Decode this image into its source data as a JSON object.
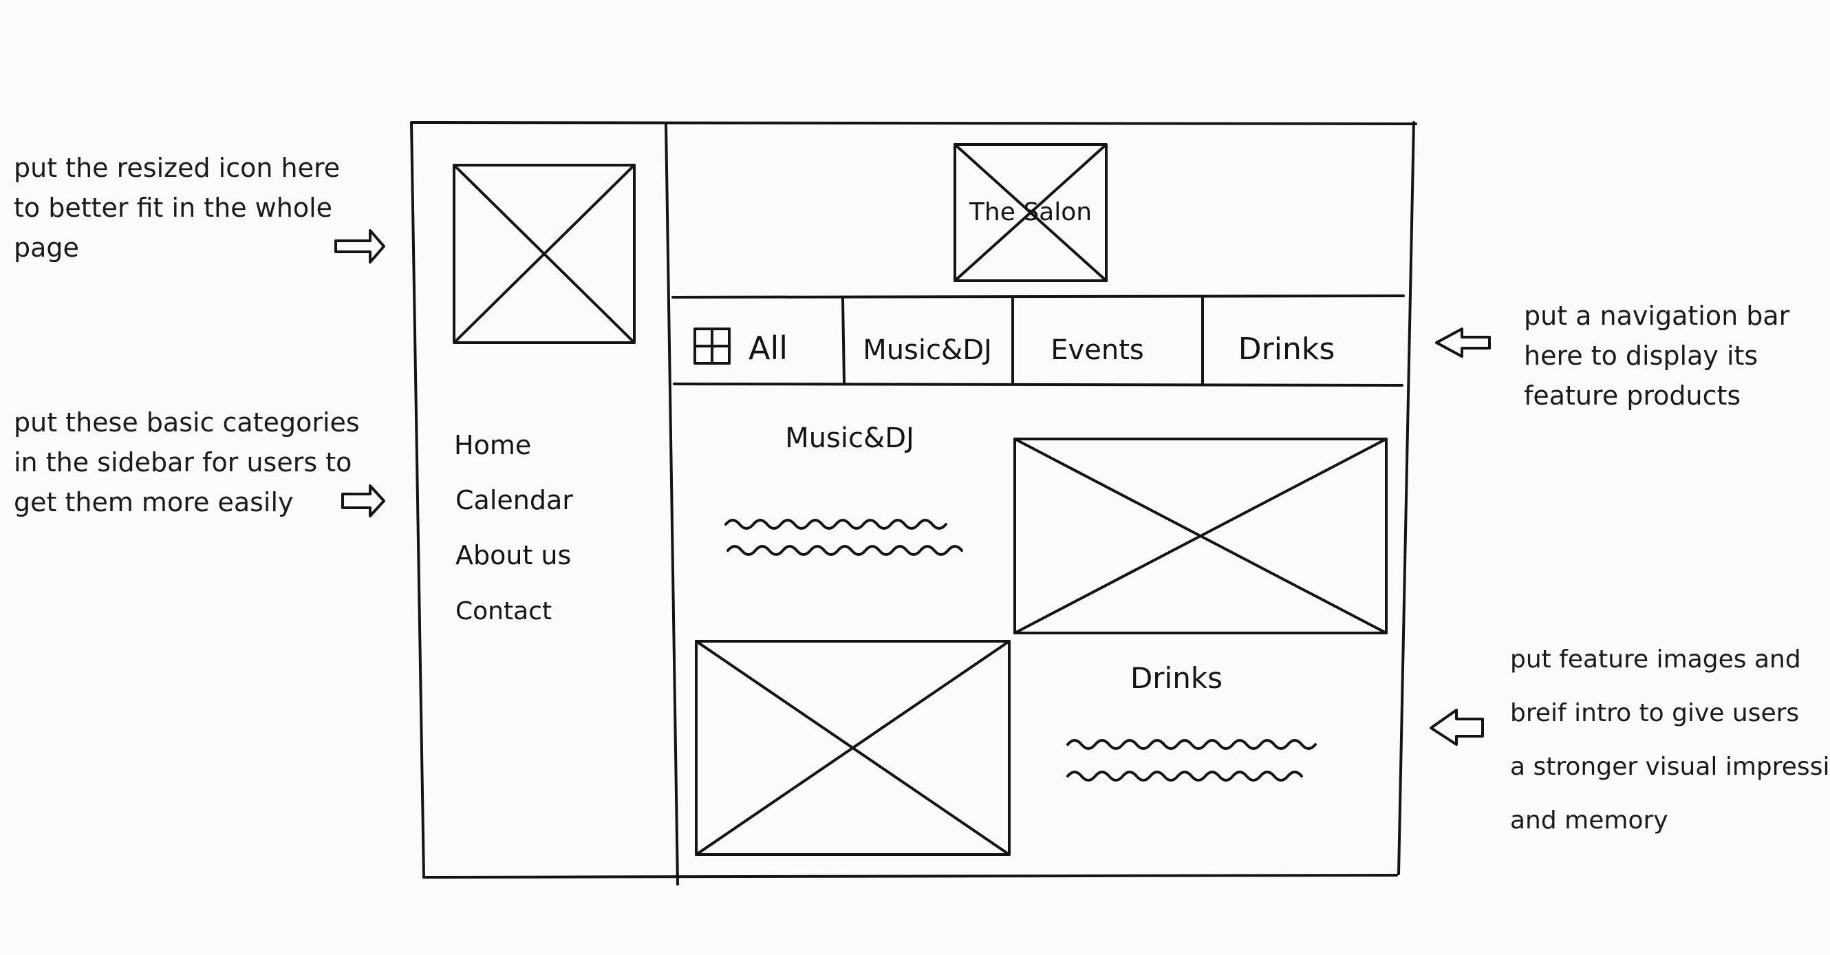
{
  "annotations": {
    "icon_note": [
      "put the resized icon here",
      "to better fit in the whole",
      "page"
    ],
    "sidebar_note": [
      "put these basic categories",
      "in the sidebar for users to",
      "get them more easily"
    ],
    "navbar_note": [
      "put a navigation bar",
      "here to display its",
      "feature products"
    ],
    "features_note": [
      "put feature images and",
      "breif intro to give users",
      "a stronger visual impression",
      "and memory"
    ]
  },
  "wireframe": {
    "logo_text": "The Salon",
    "nav": {
      "items": [
        "All",
        "Music&DJ",
        "Events",
        "Drinks"
      ]
    },
    "sidebar": {
      "items": [
        "Home",
        "Calendar",
        "About us",
        "Contact"
      ]
    },
    "features": {
      "music_title": "Music&DJ",
      "drinks_title": "Drinks"
    }
  }
}
